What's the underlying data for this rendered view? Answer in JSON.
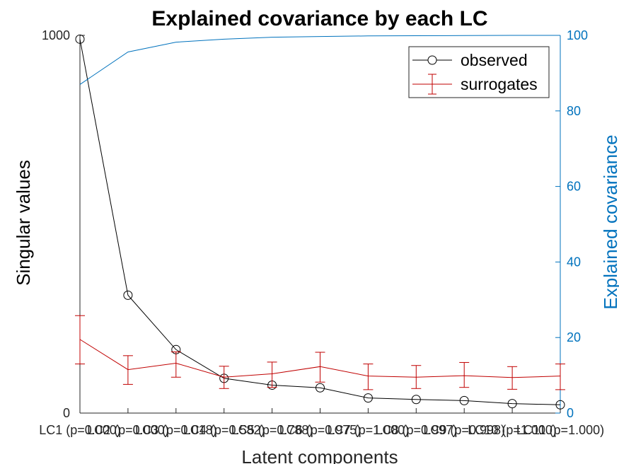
{
  "chart_data": {
    "type": "line",
    "title": "Explained covariance by each LC",
    "xlabel": "Latent components",
    "ylabel_left": "Singular values",
    "ylabel_right": "Explained covariance",
    "categories": [
      "LC1 (p=0.000)",
      "LC2 (p=0.000)",
      "LC3 (p=0.018)",
      "LC4 (p=0.582)",
      "LC5 (p=0.788)",
      "LC6 (p=0.975)",
      "LC7 (p=1.000)",
      "LC8 (p=0.997)",
      "LC9 (p=0.998)",
      "LC10 (p=1.000)",
      "LC11 (p=1.000)"
    ],
    "ylim_left": [
      0,
      1000
    ],
    "ylim_right": [
      0,
      100
    ],
    "yticks_left": [
      0,
      1000
    ],
    "yticks_right": [
      0,
      20,
      40,
      60,
      80,
      100
    ],
    "legend_position": "top-right",
    "colors": {
      "observed": "#000000",
      "surrogates": "#c00000",
      "cumulative": "#0072bd",
      "axis": "#262626"
    },
    "series": [
      {
        "name": "observed",
        "axis": "left",
        "marker": "circle",
        "values": [
          990,
          312,
          168,
          92,
          74,
          67,
          40,
          36,
          33,
          25,
          22
        ]
      },
      {
        "name": "surrogates",
        "axis": "left",
        "errorbars": true,
        "values": [
          195,
          115,
          132,
          95,
          104,
          123,
          98,
          95,
          99,
          94,
          98
        ],
        "err_low": [
          130,
          76,
          95,
          65,
          68,
          82,
          62,
          65,
          68,
          63,
          62
        ],
        "err_high": [
          258,
          152,
          162,
          124,
          135,
          161,
          130,
          126,
          134,
          123,
          130
        ]
      },
      {
        "axis": "right",
        "values": [
          87,
          95.6,
          98.2,
          99.0,
          99.5,
          99.7,
          99.85,
          99.9,
          99.95,
          100,
          100
        ]
      }
    ]
  }
}
